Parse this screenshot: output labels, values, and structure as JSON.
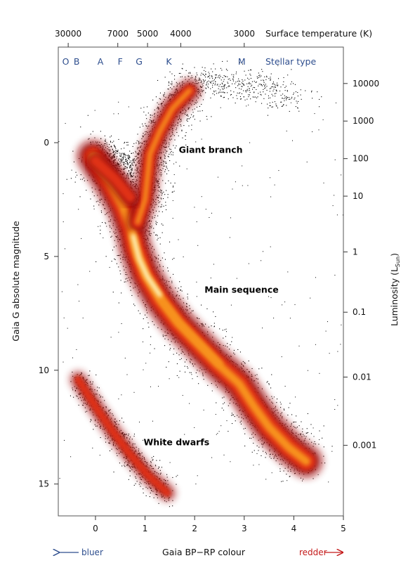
{
  "chart_data": {
    "type": "scatter",
    "title": "",
    "xlabel": "Gaia BP−RP colour",
    "ylabel": "Gaia G absolute magnitude",
    "xlim": [
      -0.75,
      5
    ],
    "ylim": [
      16.4,
      -4.2
    ],
    "x_ticks": [
      0,
      1,
      2,
      3,
      4,
      5
    ],
    "y_ticks": [
      0,
      5,
      10,
      15
    ],
    "top_axis": {
      "label": "Surface temperature (K)",
      "ticks": [
        {
          "label": "30000",
          "x": -0.55
        },
        {
          "label": "7000",
          "x": 0.45
        },
        {
          "label": "5000",
          "x": 1.05
        },
        {
          "label": "4000",
          "x": 1.72
        },
        {
          "label": "3000",
          "x": 3.0
        }
      ]
    },
    "stellar_type": {
      "label": "Stellar type",
      "classes": [
        {
          "label": "O",
          "x": -0.6
        },
        {
          "label": "B",
          "x": -0.38
        },
        {
          "label": "A",
          "x": 0.1
        },
        {
          "label": "F",
          "x": 0.5
        },
        {
          "label": "G",
          "x": 0.88
        },
        {
          "label": "K",
          "x": 1.48
        },
        {
          "label": "M",
          "x": 2.95
        }
      ]
    },
    "right_axis": {
      "label_main": "Luminosity (L",
      "label_sub": "Sun",
      "label_end": ")",
      "ticks": [
        {
          "label": "10000",
          "mag": -2.6
        },
        {
          "label": "1000",
          "mag": -0.95
        },
        {
          "label": "100",
          "mag": 0.7
        },
        {
          "label": "10",
          "mag": 2.35
        },
        {
          "label": "1",
          "mag": 4.8
        },
        {
          "label": "0.1",
          "mag": 7.45
        },
        {
          "label": "0.01",
          "mag": 10.3
        },
        {
          "label": "0.001",
          "mag": 13.3
        }
      ]
    },
    "annotations": [
      {
        "text": "Giant branch",
        "x": 1.68,
        "y": 0.45
      },
      {
        "text": "Main sequence",
        "x": 2.2,
        "y": 6.6
      },
      {
        "text": "White dwarfs",
        "x": 0.97,
        "y": 13.3
      }
    ],
    "bottom_labels": {
      "bluer": "bluer",
      "redder": "redder"
    },
    "density_ridges": {
      "main_sequence": [
        [
          -0.05,
          0.6
        ],
        [
          0.3,
          1.8
        ],
        [
          0.55,
          2.8
        ],
        [
          0.72,
          3.8
        ],
        [
          0.8,
          4.6
        ],
        [
          1.0,
          5.8
        ],
        [
          1.3,
          6.9
        ],
        [
          1.65,
          7.9
        ],
        [
          2.0,
          8.7
        ],
        [
          2.45,
          9.7
        ],
        [
          2.9,
          10.6
        ],
        [
          3.2,
          11.6
        ],
        [
          3.5,
          12.5
        ],
        [
          3.9,
          13.4
        ],
        [
          4.25,
          14.0
        ]
      ],
      "giant_branch": [
        [
          0.85,
          3.5
        ],
        [
          1.0,
          2.5
        ],
        [
          1.05,
          1.5
        ],
        [
          1.1,
          0.5
        ],
        [
          1.3,
          -0.5
        ],
        [
          1.55,
          -1.5
        ],
        [
          1.9,
          -2.3
        ]
      ],
      "white_dwarfs": [
        [
          -0.35,
          10.4
        ],
        [
          0.0,
          11.6
        ],
        [
          0.35,
          12.7
        ],
        [
          0.7,
          13.7
        ],
        [
          1.05,
          14.6
        ],
        [
          1.45,
          15.4
        ]
      ]
    },
    "colors": {
      "core": "#fff9c0",
      "hot": "#f7921e",
      "mid": "#e03018",
      "dense": "#9e0c0c",
      "sparse": "#000000",
      "stellar_type": "#2e4e8e",
      "bluer": "#2e4e8e",
      "redder": "#c41a1a"
    },
    "grid": false,
    "legend": "none"
  }
}
